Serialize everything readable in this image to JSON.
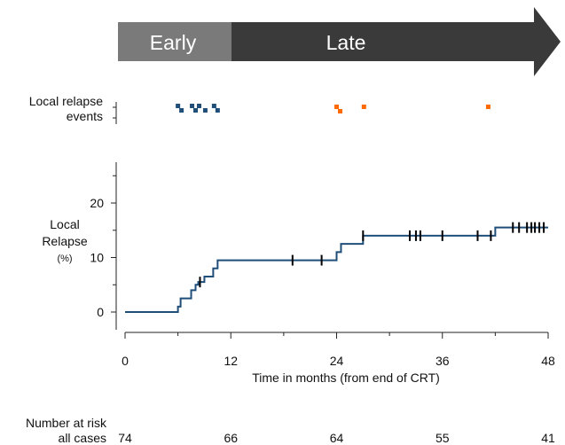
{
  "phase_arrow": {
    "early_label": "Early",
    "late_label": "Late",
    "early_color": "#7a7a7a",
    "late_color": "#3a3a3a",
    "early_end_month": 12
  },
  "events_panel": {
    "label_line1": "Local relapse",
    "label_line2": "events",
    "early_color": "#1f4e79",
    "late_color": "#ff6a00"
  },
  "risk_table": {
    "label_line1": "Number at risk",
    "label_line2": "all cases",
    "times": [
      0,
      12,
      24,
      36,
      48
    ],
    "counts": [
      "74",
      "66",
      "64",
      "55",
      "41"
    ]
  },
  "chart_data": {
    "type": "line",
    "subtype": "kaplan-meier step",
    "xlabel": "Time in months (from end of CRT)",
    "ylabel_line1": "Local",
    "ylabel_line2": "Relapse",
    "ylabel_line3": "(%)",
    "xlim": [
      0,
      48
    ],
    "ylim": [
      0,
      25
    ],
    "xticks": [
      0,
      12,
      24,
      36,
      48
    ],
    "xtick_labels": [
      "0",
      "12",
      "24",
      "36",
      "48"
    ],
    "yticks": [
      0,
      10,
      20
    ],
    "ytick_labels": [
      "0",
      "10",
      "20"
    ],
    "y_minor_ticks": [
      5,
      15,
      25
    ],
    "x_minor_ticks": [
      6,
      18,
      30,
      42
    ],
    "line_color": "#1f4e79",
    "censor_color": "#000000",
    "steps": [
      [
        0,
        0
      ],
      [
        6,
        1
      ],
      [
        6.3,
        2.5
      ],
      [
        7.5,
        4
      ],
      [
        8,
        5
      ],
      [
        8.3,
        5.5
      ],
      [
        9,
        6.5
      ],
      [
        10,
        8
      ],
      [
        10.5,
        9.5
      ],
      [
        24,
        11
      ],
      [
        24.5,
        12.5
      ],
      [
        27,
        14
      ],
      [
        42,
        15.5
      ],
      [
        48,
        15.5
      ]
    ],
    "censored": [
      8.5,
      19,
      22.3,
      27,
      32.3,
      33,
      33.5,
      36,
      40,
      41.5,
      44,
      44.7,
      45.6,
      46.1,
      46.5,
      47,
      47.5
    ],
    "relapse_events": {
      "early": [
        6,
        6.4,
        7.6,
        8,
        8.4,
        9.1,
        10.1,
        10.5
      ],
      "late": [
        24,
        24.4,
        27.1,
        41.2
      ]
    }
  }
}
